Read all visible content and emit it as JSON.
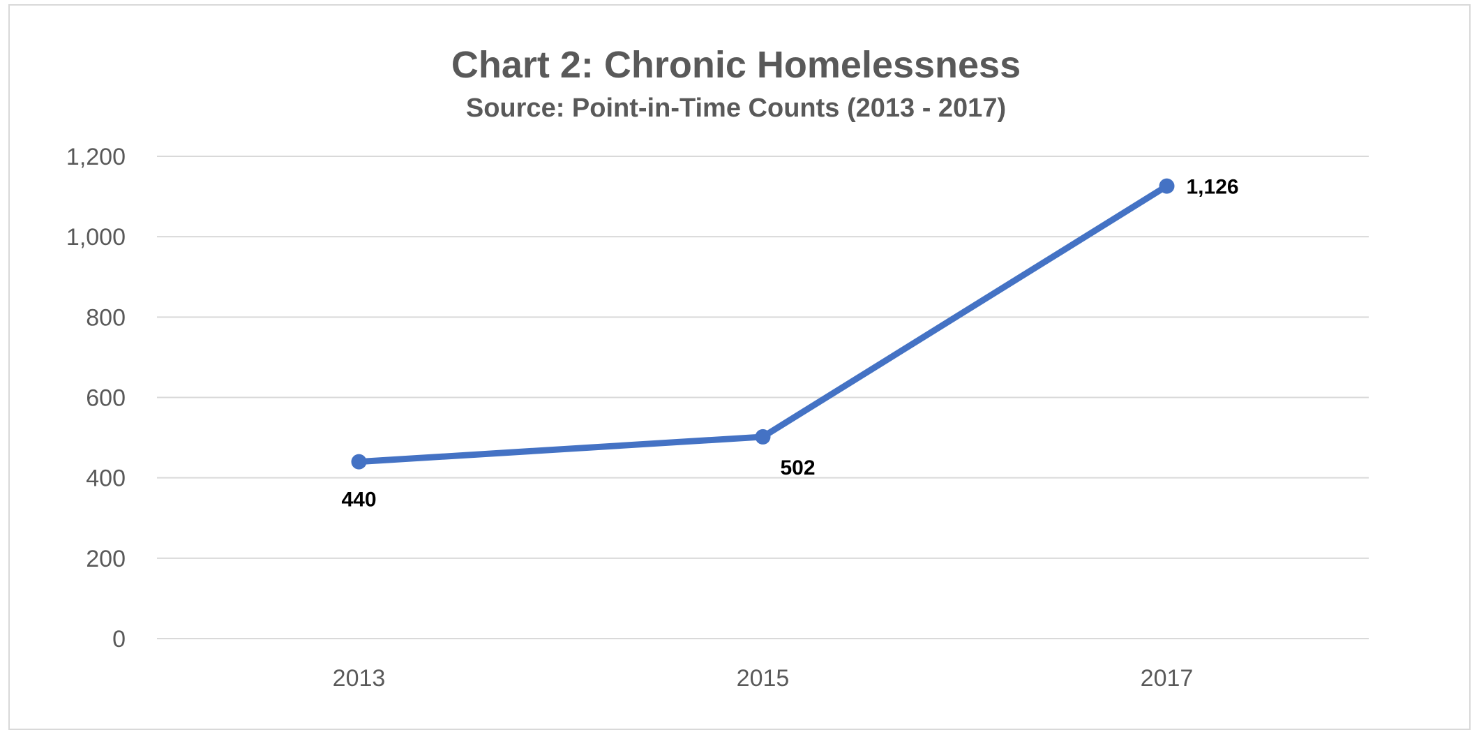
{
  "chart_data": {
    "type": "line",
    "title": "Chart 2: Chronic Homelessness",
    "subtitle": "Source: Point-in-Time Counts (2013 - 2017)",
    "categories": [
      "2013",
      "2015",
      "2017"
    ],
    "series": [
      {
        "values": [
          440,
          502,
          1126
        ],
        "labels": [
          "440",
          "502",
          "1,126"
        ]
      }
    ],
    "y_ticks": [
      "0",
      "200",
      "400",
      "600",
      "800",
      "1,000",
      "1,200"
    ],
    "ylim": [
      0,
      1200
    ],
    "grid": true,
    "legend": "none",
    "colors": {
      "line": "#4472c4",
      "grid": "#d9d9d9",
      "text": "#595959",
      "data_label": "#000000"
    }
  }
}
